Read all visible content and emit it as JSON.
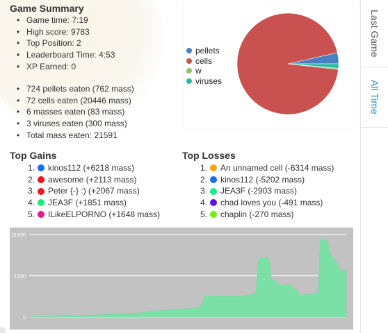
{
  "game_summary": {
    "title": "Game Summary",
    "stats": [
      "Game time: 7:19",
      "High score: 9783",
      "Top Position: 2",
      "Leaderboard Time: 4:53",
      "XP Earned: 0"
    ],
    "eaten": [
      "724 pellets eaten (762 mass)",
      "72 cells eaten (20446 mass)",
      "6 masses eaten (83 mass)",
      "3 viruses eaten (300 mass)",
      "Total mass eaten: 21591"
    ]
  },
  "tabs": {
    "last_game": "Last Game",
    "all_time": "All Time"
  },
  "pie_legend": [
    {
      "label": "pellets",
      "color": "#4a7fc1"
    },
    {
      "label": "cells",
      "color": "#c9514f"
    },
    {
      "label": "w",
      "color": "#93c26b"
    },
    {
      "label": "viruses",
      "color": "#2fb9a4"
    }
  ],
  "top_gains": {
    "title": "Top Gains",
    "items": [
      {
        "num": "1.",
        "text": "kinos112 (+6218 mass)",
        "color": "#1a6df2"
      },
      {
        "num": "2.",
        "text": "awesome (+2113 mass)",
        "color": "#f0171b"
      },
      {
        "num": "3.",
        "text": "Peter {-} :) (+2067 mass)",
        "color": "#f5161b"
      },
      {
        "num": "4.",
        "text": "JEA3F (+1851 mass)",
        "color": "#14f07f"
      },
      {
        "num": "5.",
        "text": "ILikeELPORNO (+1648 mass)",
        "color": "#f0168e"
      }
    ]
  },
  "top_losses": {
    "title": "Top Losses",
    "items": [
      {
        "num": "1.",
        "text": "An unnamed cell (-6314 mass)",
        "color": "#f5a50a"
      },
      {
        "num": "2.",
        "text": "kinos112 (-5202 mass)",
        "color": "#1a6df2"
      },
      {
        "num": "3.",
        "text": "JEA3F (-2903 mass)",
        "color": "#14f07f"
      },
      {
        "num": "4.",
        "text": "chad loves you (-491 mass)",
        "color": "#5a12e6"
      },
      {
        "num": "5.",
        "text": "chaplin (-270 mass)",
        "color": "#6cf214"
      }
    ]
  },
  "chart_data": [
    {
      "type": "pie",
      "categories": [
        "pellets",
        "cells",
        "w",
        "viruses"
      ],
      "values": [
        762,
        20446,
        83,
        300
      ],
      "legend": "left"
    },
    {
      "type": "area",
      "y_ticks": [
        "10,000",
        "5,000",
        "0"
      ],
      "ylim": [
        0,
        10000
      ],
      "grid": true,
      "values": [
        30,
        30,
        40,
        40,
        50,
        60,
        60,
        70,
        80,
        80,
        90,
        100,
        110,
        120,
        130,
        140,
        150,
        160,
        160,
        170,
        180,
        190,
        200,
        220,
        240,
        250,
        260,
        260,
        280,
        300,
        300,
        320,
        330,
        350,
        360,
        380,
        380,
        400,
        420,
        440,
        460,
        480,
        500,
        520,
        560,
        600,
        650,
        700,
        720,
        740,
        760,
        780,
        800,
        840,
        860,
        880,
        920,
        940,
        960,
        990,
        1000,
        1020,
        1040,
        1060,
        1080,
        1100,
        1200,
        1600,
        2600,
        2500,
        2500,
        2550,
        2500,
        2480,
        2500,
        2500,
        2550,
        2500,
        2480,
        2500,
        2500,
        2520,
        2500,
        2520,
        2600,
        2650,
        2700,
        2800,
        3000,
        7000,
        7200,
        7100,
        7200,
        7150,
        4600,
        4400,
        4300,
        4000,
        3800,
        3900,
        4000,
        3950,
        3600,
        3400,
        3300,
        2500,
        2600,
        2800,
        2700,
        2750,
        2800,
        2900,
        3000,
        9300,
        9500,
        9400,
        9000,
        7400,
        7200,
        6800,
        6000,
        5700,
        5600,
        5600
      ]
    }
  ]
}
